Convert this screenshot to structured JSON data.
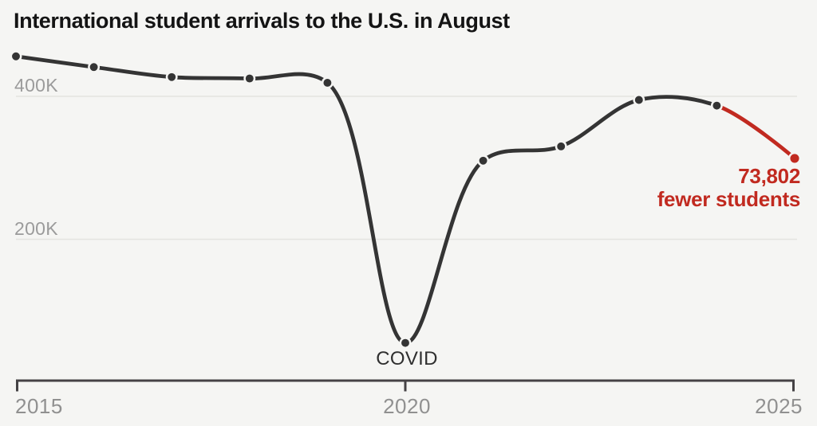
{
  "chart_data": {
    "type": "line",
    "title": "International student arrivals to the U.S. in August",
    "x": [
      2015,
      2016,
      2017,
      2018,
      2019,
      2020,
      2021,
      2022,
      2023,
      2024,
      2025
    ],
    "series": [
      {
        "name": "International student arrivals in August",
        "values": [
          456,
          441,
          427,
          425,
          419,
          55,
          310,
          330,
          395,
          387,
          313.2
        ]
      }
    ],
    "y_unit": "thousands of students",
    "ylim": [
      0,
      470
    ],
    "grid": "horizontal",
    "legend": "none",
    "y_ticks": [
      {
        "label": "400K",
        "value": 400
      },
      {
        "label": "200K",
        "value": 200
      }
    ],
    "x_ticks": [
      {
        "label": "2015",
        "value": 2015
      },
      {
        "label": "2020",
        "value": 2020
      },
      {
        "label": "2025",
        "value": 2025
      }
    ],
    "annotations": {
      "covid": {
        "x": 2020,
        "label": "COVID"
      },
      "drop": {
        "x": 2025,
        "line1": "73,802",
        "line2": "fewer students"
      }
    },
    "highlight": {
      "from": 2024,
      "to": 2025,
      "note": "final segment drawn in red"
    },
    "colors": {
      "line": "#343434",
      "point": "#343434",
      "highlight": "#c12a20",
      "grid": "#e4e4e0",
      "axis": "#454245",
      "background": "#f5f5f3",
      "tick_label": "#9b9b9b",
      "title": "#141414"
    }
  }
}
